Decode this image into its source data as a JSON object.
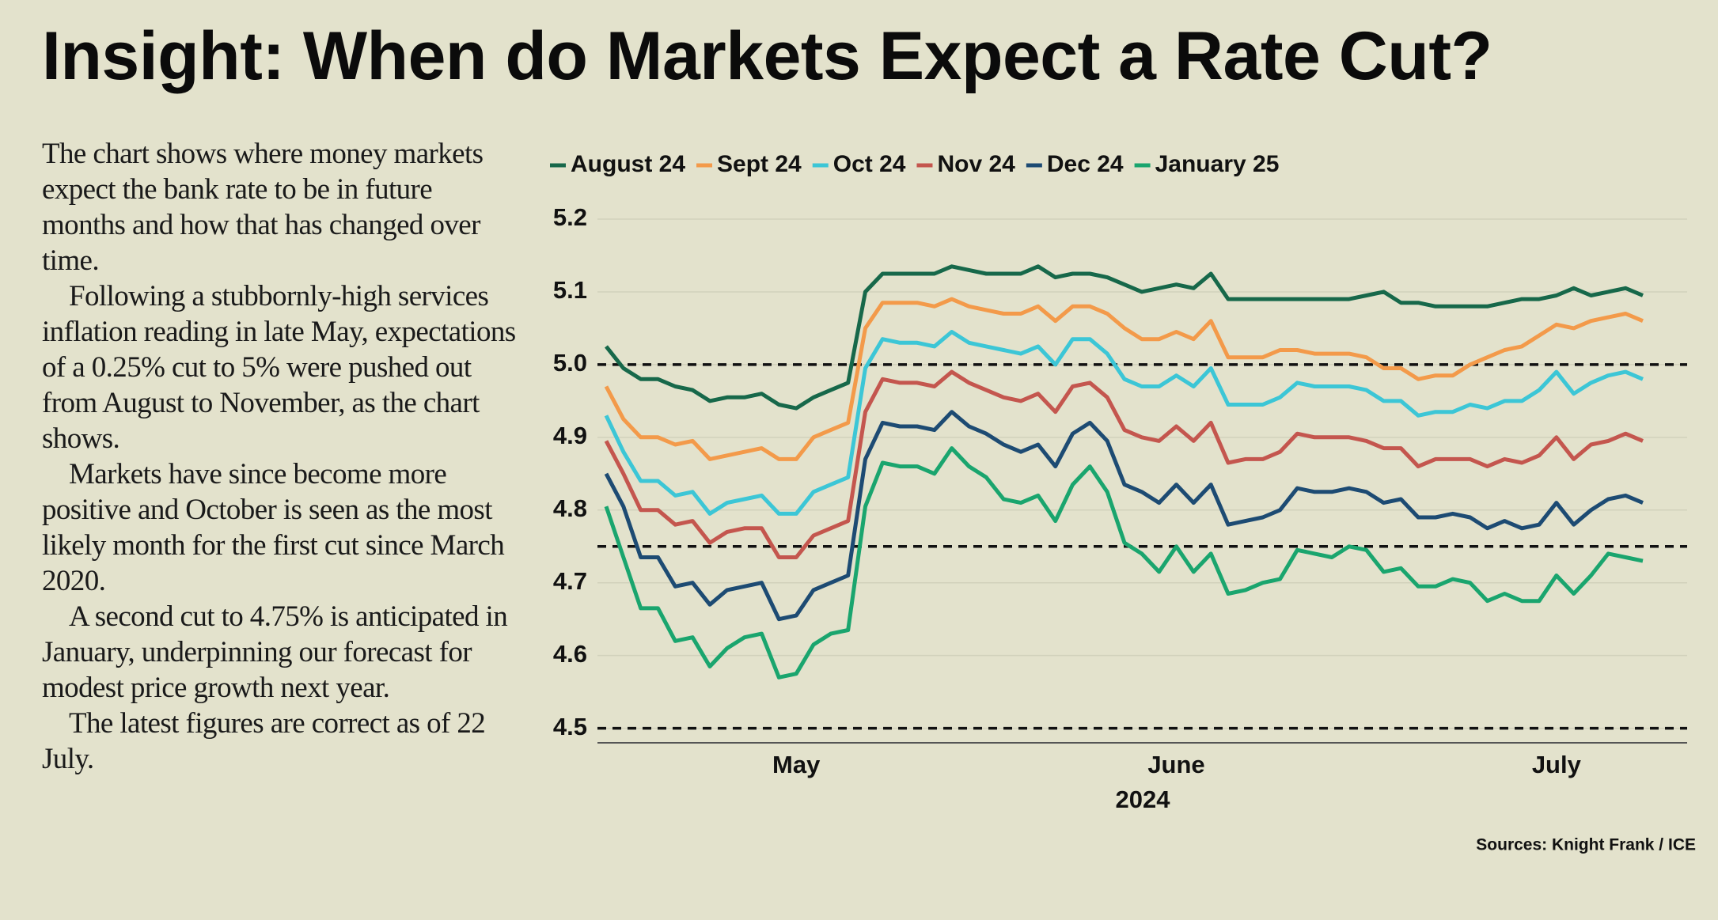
{
  "title": "Insight: When do Markets Expect a Rate Cut?",
  "body": [
    "The chart shows where money markets expect the bank rate to be in future months and how that has changed over time.",
    "Following a stubbornly-high services inflation reading in late May, expectations of a 0.25% cut to 5% were pushed out from August to November, as the chart shows.",
    "Markets have since become more positive and October is seen as the most likely month for the first cut since March 2020.",
    "A second cut to 4.75% is anticipated in January, underpinning our forecast for modest price growth next year.",
    "The latest figures are correct as of 22 July."
  ],
  "chart_data": {
    "type": "line",
    "xlabel": "2024",
    "source": "Sources: Knight Frank / ICE",
    "categories": [
      null,
      null,
      null,
      null,
      null,
      null,
      null,
      null,
      null,
      null,
      null,
      "May",
      null,
      null,
      null,
      null,
      null,
      null,
      null,
      null,
      null,
      null,
      null,
      null,
      null,
      null,
      null,
      null,
      null,
      null,
      null,
      null,
      null,
      "June",
      null,
      null,
      null,
      null,
      null,
      null,
      null,
      null,
      null,
      null,
      null,
      null,
      null,
      null,
      null,
      null,
      null,
      null,
      null,
      null,
      null,
      "July",
      null,
      null,
      null,
      null,
      null
    ],
    "ylim": [
      4.48,
      5.2
    ],
    "yticks": [
      4.5,
      4.6,
      4.7,
      4.8,
      4.9,
      {
        "value": 5,
        "label": "5.0"
      },
      5.1,
      5.2
    ],
    "grid": true,
    "reference_lines": [
      5,
      4.75,
      4.5
    ],
    "legend": "top",
    "series": [
      {
        "name": "August 24",
        "color": "#17684a",
        "values": [
          5.025,
          4.995,
          4.98,
          4.98,
          4.97,
          4.965,
          4.95,
          4.955,
          4.955,
          4.96,
          4.945,
          4.94,
          4.955,
          4.965,
          4.975,
          5.1,
          5.125,
          5.125,
          5.125,
          5.125,
          5.135,
          5.13,
          5.125,
          5.125,
          5.125,
          5.135,
          5.12,
          5.125,
          5.125,
          5.12,
          5.11,
          5.1,
          5.105,
          5.11,
          5.105,
          5.125,
          5.09,
          5.09,
          5.09,
          5.09,
          5.09,
          5.09,
          5.09,
          5.09,
          5.095,
          5.1,
          5.085,
          5.085,
          5.08,
          5.08,
          5.08,
          5.08,
          5.085,
          5.09,
          5.09,
          5.095,
          5.105,
          5.095,
          5.1,
          5.105,
          5.095
        ]
      },
      {
        "name": "Sept 24",
        "color": "#f39a4a",
        "values": [
          4.97,
          4.925,
          4.9,
          4.9,
          4.89,
          4.895,
          4.87,
          4.875,
          4.88,
          4.885,
          4.87,
          4.87,
          4.9,
          4.91,
          4.92,
          5.05,
          5.085,
          5.085,
          5.085,
          5.08,
          5.09,
          5.08,
          5.075,
          5.07,
          5.07,
          5.08,
          5.06,
          5.08,
          5.08,
          5.07,
          5.05,
          5.035,
          5.035,
          5.045,
          5.035,
          5.06,
          5.01,
          5.01,
          5.01,
          5.02,
          5.02,
          5.015,
          5.015,
          5.015,
          5.01,
          4.995,
          4.995,
          4.98,
          4.985,
          4.985,
          5.0,
          5.01,
          5.02,
          5.025,
          5.04,
          5.055,
          5.05,
          5.06,
          5.065,
          5.07,
          5.06
        ]
      },
      {
        "name": "Oct 24",
        "color": "#3cc6d6",
        "values": [
          4.93,
          4.88,
          4.84,
          4.84,
          4.82,
          4.825,
          4.795,
          4.81,
          4.815,
          4.82,
          4.795,
          4.795,
          4.825,
          4.835,
          4.845,
          4.995,
          5.035,
          5.03,
          5.03,
          5.025,
          5.045,
          5.03,
          5.025,
          5.02,
          5.015,
          5.025,
          5.0,
          5.035,
          5.035,
          5.015,
          4.98,
          4.97,
          4.97,
          4.985,
          4.97,
          4.995,
          4.945,
          4.945,
          4.945,
          4.955,
          4.975,
          4.97,
          4.97,
          4.97,
          4.965,
          4.95,
          4.95,
          4.93,
          4.935,
          4.935,
          4.945,
          4.94,
          4.95,
          4.95,
          4.965,
          4.99,
          4.96,
          4.975,
          4.985,
          4.99,
          4.98
        ]
      },
      {
        "name": "Nov 24",
        "color": "#c4564e",
        "values": [
          4.895,
          4.85,
          4.8,
          4.8,
          4.78,
          4.785,
          4.755,
          4.77,
          4.775,
          4.775,
          4.735,
          4.735,
          4.765,
          4.775,
          4.785,
          4.935,
          4.98,
          4.975,
          4.975,
          4.97,
          4.99,
          4.975,
          4.965,
          4.955,
          4.95,
          4.96,
          4.935,
          4.97,
          4.975,
          4.955,
          4.91,
          4.9,
          4.895,
          4.915,
          4.895,
          4.92,
          4.865,
          4.87,
          4.87,
          4.88,
          4.905,
          4.9,
          4.9,
          4.9,
          4.895,
          4.885,
          4.885,
          4.86,
          4.87,
          4.87,
          4.87,
          4.86,
          4.87,
          4.865,
          4.875,
          4.9,
          4.87,
          4.89,
          4.895,
          4.905,
          4.895
        ]
      },
      {
        "name": "Dec 24",
        "color": "#1d4b73",
        "values": [
          4.85,
          4.805,
          4.735,
          4.735,
          4.695,
          4.7,
          4.67,
          4.69,
          4.695,
          4.7,
          4.65,
          4.655,
          4.69,
          4.7,
          4.71,
          4.87,
          4.92,
          4.915,
          4.915,
          4.91,
          4.935,
          4.915,
          4.905,
          4.89,
          4.88,
          4.89,
          4.86,
          4.905,
          4.92,
          4.895,
          4.835,
          4.825,
          4.81,
          4.835,
          4.81,
          4.835,
          4.78,
          4.785,
          4.79,
          4.8,
          4.83,
          4.825,
          4.825,
          4.83,
          4.825,
          4.81,
          4.815,
          4.79,
          4.79,
          4.795,
          4.79,
          4.775,
          4.785,
          4.775,
          4.78,
          4.81,
          4.78,
          4.8,
          4.815,
          4.82,
          4.81
        ]
      },
      {
        "name": "January 25",
        "color": "#1aa56e",
        "values": [
          4.805,
          4.735,
          4.665,
          4.665,
          4.62,
          4.625,
          4.585,
          4.61,
          4.625,
          4.63,
          4.57,
          4.575,
          4.615,
          4.63,
          4.635,
          4.805,
          4.865,
          4.86,
          4.86,
          4.85,
          4.885,
          4.86,
          4.845,
          4.815,
          4.81,
          4.82,
          4.785,
          4.835,
          4.86,
          4.825,
          4.755,
          4.74,
          4.715,
          4.75,
          4.715,
          4.74,
          4.685,
          4.69,
          4.7,
          4.705,
          4.745,
          4.74,
          4.735,
          4.75,
          4.745,
          4.715,
          4.72,
          4.695,
          4.695,
          4.705,
          4.7,
          4.675,
          4.685,
          4.675,
          4.675,
          4.71,
          4.685,
          4.71,
          4.74,
          4.735,
          4.73
        ]
      }
    ]
  }
}
